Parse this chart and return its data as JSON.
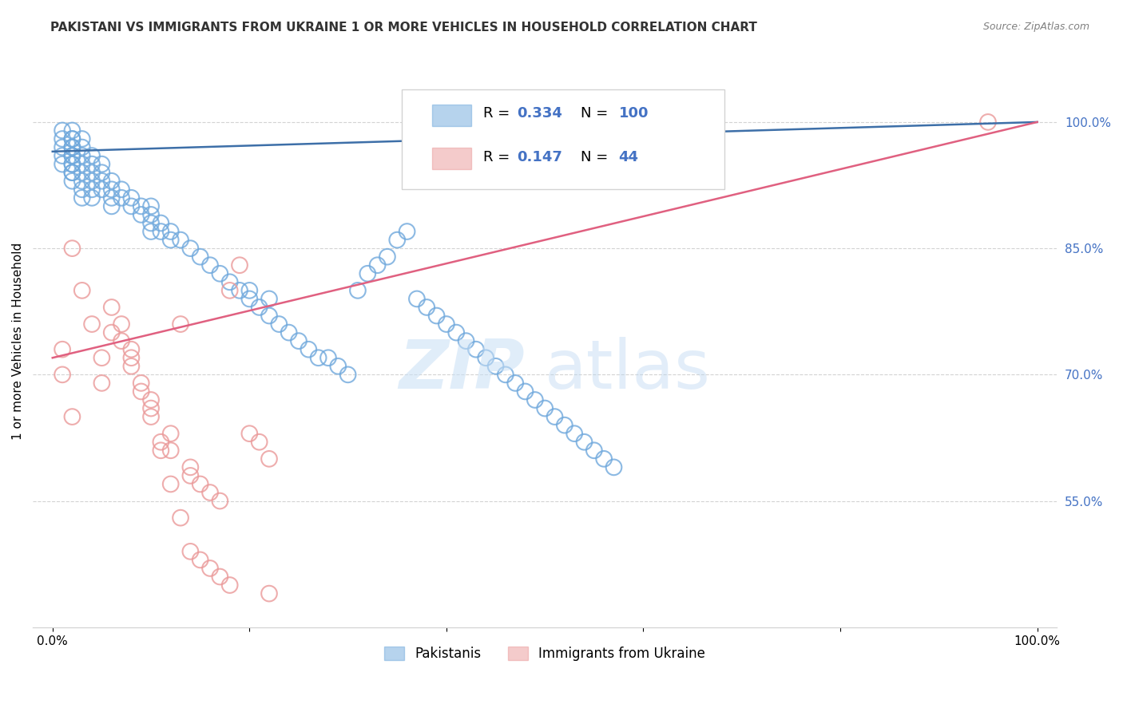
{
  "title": "PAKISTANI VS IMMIGRANTS FROM UKRAINE 1 OR MORE VEHICLES IN HOUSEHOLD CORRELATION CHART",
  "source": "Source: ZipAtlas.com",
  "ylabel": "1 or more Vehicles in Household",
  "blue_R": "0.334",
  "blue_N": "100",
  "pink_R": "0.147",
  "pink_N": "44",
  "blue_color": "#6fa8dc",
  "pink_color": "#ea9999",
  "trendline_blue_color": "#3d6fa8",
  "trendline_pink_color": "#e06080",
  "legend_labels": [
    "Pakistanis",
    "Immigrants from Ukraine"
  ],
  "blue_trend_x": [
    0,
    100
  ],
  "blue_trend_y": [
    96.5,
    100
  ],
  "pink_trend_x": [
    0,
    100
  ],
  "pink_trend_y": [
    72,
    100
  ],
  "ytick_vals": [
    55,
    70,
    85,
    100
  ],
  "ytick_labels": [
    "55.0%",
    "70.0%",
    "85.0%",
    "100.0%"
  ],
  "xtick_vals": [
    0,
    20,
    40,
    60,
    80,
    100
  ],
  "xtick_labels": [
    "0.0%",
    "",
    "",
    "",
    "",
    "100.0%"
  ],
  "blue_scatter_x": [
    1,
    1,
    1,
    1,
    1,
    2,
    2,
    2,
    2,
    2,
    2,
    2,
    2,
    2,
    2,
    2,
    2,
    3,
    3,
    3,
    3,
    3,
    3,
    3,
    3,
    4,
    4,
    4,
    4,
    4,
    4,
    5,
    5,
    5,
    5,
    6,
    6,
    6,
    6,
    7,
    7,
    8,
    8,
    9,
    9,
    10,
    10,
    10,
    10,
    11,
    11,
    12,
    12,
    13,
    14,
    15,
    16,
    17,
    18,
    19,
    20,
    20,
    21,
    22,
    22,
    23,
    24,
    25,
    26,
    27,
    28,
    29,
    30,
    31,
    32,
    33,
    34,
    35,
    36,
    37,
    38,
    39,
    40,
    41,
    42,
    43,
    44,
    45,
    46,
    47,
    48,
    49,
    50,
    51,
    52,
    53,
    54,
    55,
    56,
    57
  ],
  "blue_scatter_y": [
    97,
    98,
    96,
    95,
    99,
    97,
    98,
    96,
    95,
    94,
    99,
    98,
    97,
    96,
    95,
    94,
    93,
    97,
    96,
    95,
    94,
    93,
    92,
    91,
    98,
    96,
    95,
    94,
    93,
    92,
    91,
    95,
    94,
    93,
    92,
    93,
    92,
    91,
    90,
    92,
    91,
    91,
    90,
    90,
    89,
    89,
    88,
    87,
    90,
    88,
    87,
    87,
    86,
    86,
    85,
    84,
    83,
    82,
    81,
    80,
    80,
    79,
    78,
    77,
    79,
    76,
    75,
    74,
    73,
    72,
    72,
    71,
    70,
    80,
    82,
    83,
    84,
    86,
    87,
    79,
    78,
    77,
    76,
    75,
    74,
    73,
    72,
    71,
    70,
    69,
    68,
    67,
    66,
    65,
    64,
    63,
    62,
    61,
    60,
    59
  ],
  "pink_scatter_x": [
    1,
    1,
    2,
    2,
    3,
    4,
    5,
    6,
    7,
    8,
    9,
    10,
    11,
    12,
    13,
    14,
    15,
    16,
    17,
    18,
    19,
    20,
    21,
    22,
    5,
    8,
    10,
    12,
    14,
    6,
    7,
    8,
    9,
    10,
    11,
    12,
    13,
    14,
    15,
    16,
    17,
    18,
    22,
    95
  ],
  "pink_scatter_y": [
    70,
    73,
    65,
    85,
    80,
    76,
    72,
    78,
    76,
    72,
    68,
    66,
    62,
    61,
    76,
    58,
    57,
    56,
    55,
    80,
    83,
    63,
    62,
    60,
    69,
    71,
    67,
    63,
    59,
    75,
    74,
    73,
    69,
    65,
    61,
    57,
    53,
    49,
    48,
    47,
    46,
    45,
    44,
    100
  ]
}
